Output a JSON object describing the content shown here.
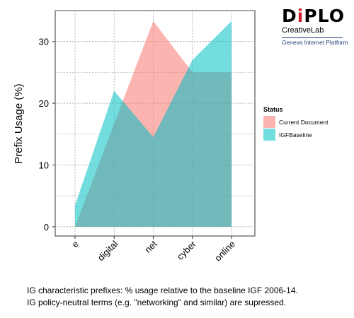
{
  "chart_data": {
    "type": "area",
    "categories": [
      "e",
      "digital",
      "net",
      "cyber",
      "online"
    ],
    "series": [
      {
        "name": "Current Document",
        "values": [
          0,
          16.7,
          33.3,
          25.0,
          25.0
        ],
        "color": "#F8766D"
      },
      {
        "name": "IGFBaseline",
        "values": [
          3.5,
          22.0,
          14.5,
          27.0,
          33.3
        ],
        "color": "#00BFC4"
      }
    ],
    "title": "",
    "xlabel": "",
    "ylabel": "Prefix Usage (%)",
    "ylim": [
      -1.5,
      35
    ],
    "yticks": [
      0,
      10,
      20,
      30
    ],
    "grid": true,
    "legend": {
      "title": "Status",
      "placement": "right"
    }
  },
  "logo": {
    "brand_pre": "D",
    "brand_i": "i",
    "brand_post": "PLO",
    "subtitle": "CreativeLab",
    "platform": "Geneva Internet Platform"
  },
  "footnotes": [
    "IG characteristic prefixes: % usage relative to the baseline IGF 2006-14.",
    "IG policy-neutral terms (e.g. \"networking\" and similar) are supressed."
  ]
}
